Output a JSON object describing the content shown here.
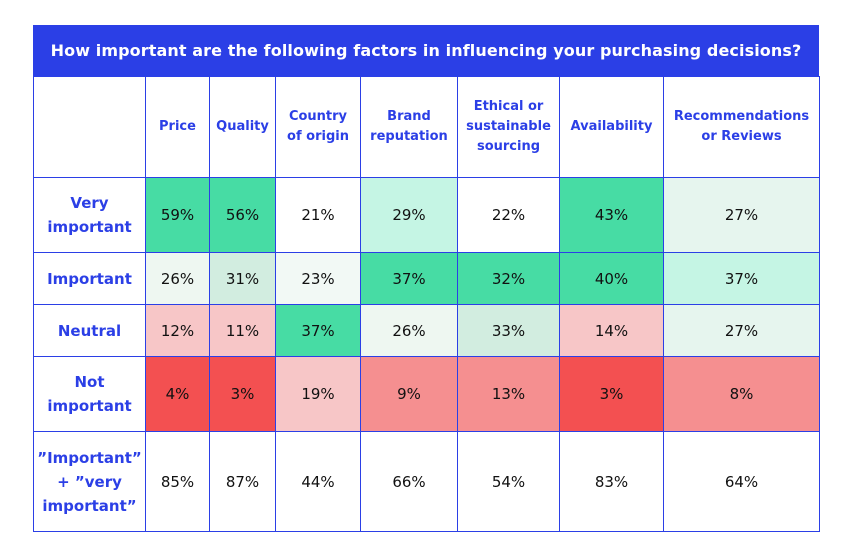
{
  "chart_data": {
    "type": "table",
    "title": "How important are the following factors in influencing your purchasing decisions?",
    "columns": [
      "Price",
      "Quality",
      "Country of origin",
      "Brand reputation",
      "Ethical or sustainable sourcing",
      "Availability",
      "Recommendations or Reviews"
    ],
    "rows": [
      {
        "label": "Very important",
        "values": [
          "59%",
          "56%",
          "21%",
          "29%",
          "22%",
          "43%",
          "27%"
        ],
        "colors": [
          "#47dca4",
          "#47dca4",
          "#ffffff",
          "#c5f5e4",
          "#ffffff",
          "#47dca4",
          "#e6f5ee"
        ]
      },
      {
        "label": "Important",
        "values": [
          "26%",
          "31%",
          "23%",
          "37%",
          "32%",
          "40%",
          "37%"
        ],
        "colors": [
          "#eef7f1",
          "#d2ede0",
          "#f2f9f5",
          "#47dca4",
          "#47dca4",
          "#47dca4",
          "#c5f5e4"
        ]
      },
      {
        "label": "Neutral",
        "values": [
          "12%",
          "11%",
          "37%",
          "26%",
          "33%",
          "14%",
          "27%"
        ],
        "colors": [
          "#f7c6c7",
          "#f7c6c7",
          "#47dca4",
          "#eef7f1",
          "#d2ede0",
          "#f7c6c7",
          "#e6f5ee"
        ]
      },
      {
        "label": "Not important",
        "values": [
          "4%",
          "3%",
          "19%",
          "9%",
          "13%",
          "3%",
          "8%"
        ],
        "colors": [
          "#f35051",
          "#f35051",
          "#f7c6c7",
          "#f58f90",
          "#f58f90",
          "#f35051",
          "#f58f90"
        ]
      },
      {
        "label": "”Important” + ”very important”",
        "values": [
          "85%",
          "87%",
          "44%",
          "66%",
          "54%",
          "83%",
          "64%"
        ],
        "colors": [
          "#ffffff",
          "#ffffff",
          "#ffffff",
          "#ffffff",
          "#ffffff",
          "#ffffff",
          "#ffffff"
        ]
      }
    ]
  },
  "colors": {
    "accent": "#2b3fe6"
  }
}
